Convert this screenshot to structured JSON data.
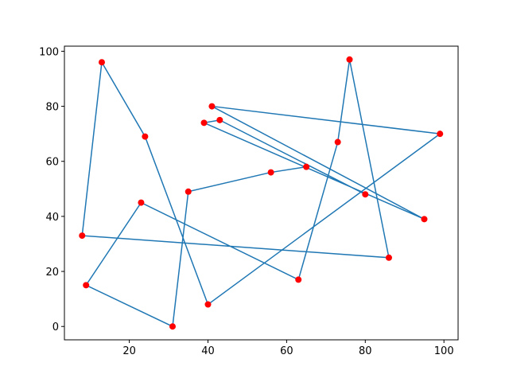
{
  "chart_data": {
    "type": "line",
    "x": [
      65,
      56,
      35,
      31,
      9,
      23,
      63,
      73,
      76,
      86,
      8,
      13,
      24,
      40,
      99,
      41,
      95,
      39,
      43,
      80
    ],
    "series": [
      {
        "color": "#1f77b4",
        "marker_color": "#ff0000",
        "values": [
          58,
          56,
          49,
          0,
          15,
          45,
          17,
          67,
          97,
          25,
          33,
          96,
          69,
          8,
          70,
          80,
          39,
          74,
          75,
          48
        ]
      }
    ],
    "xlim": [
      3.5,
      103.6
    ],
    "ylim": [
      -4.85,
      101.85
    ],
    "xticks": [
      20,
      40,
      60,
      80,
      100
    ],
    "yticks": [
      0,
      20,
      40,
      60,
      80,
      100
    ],
    "grid": false
  }
}
